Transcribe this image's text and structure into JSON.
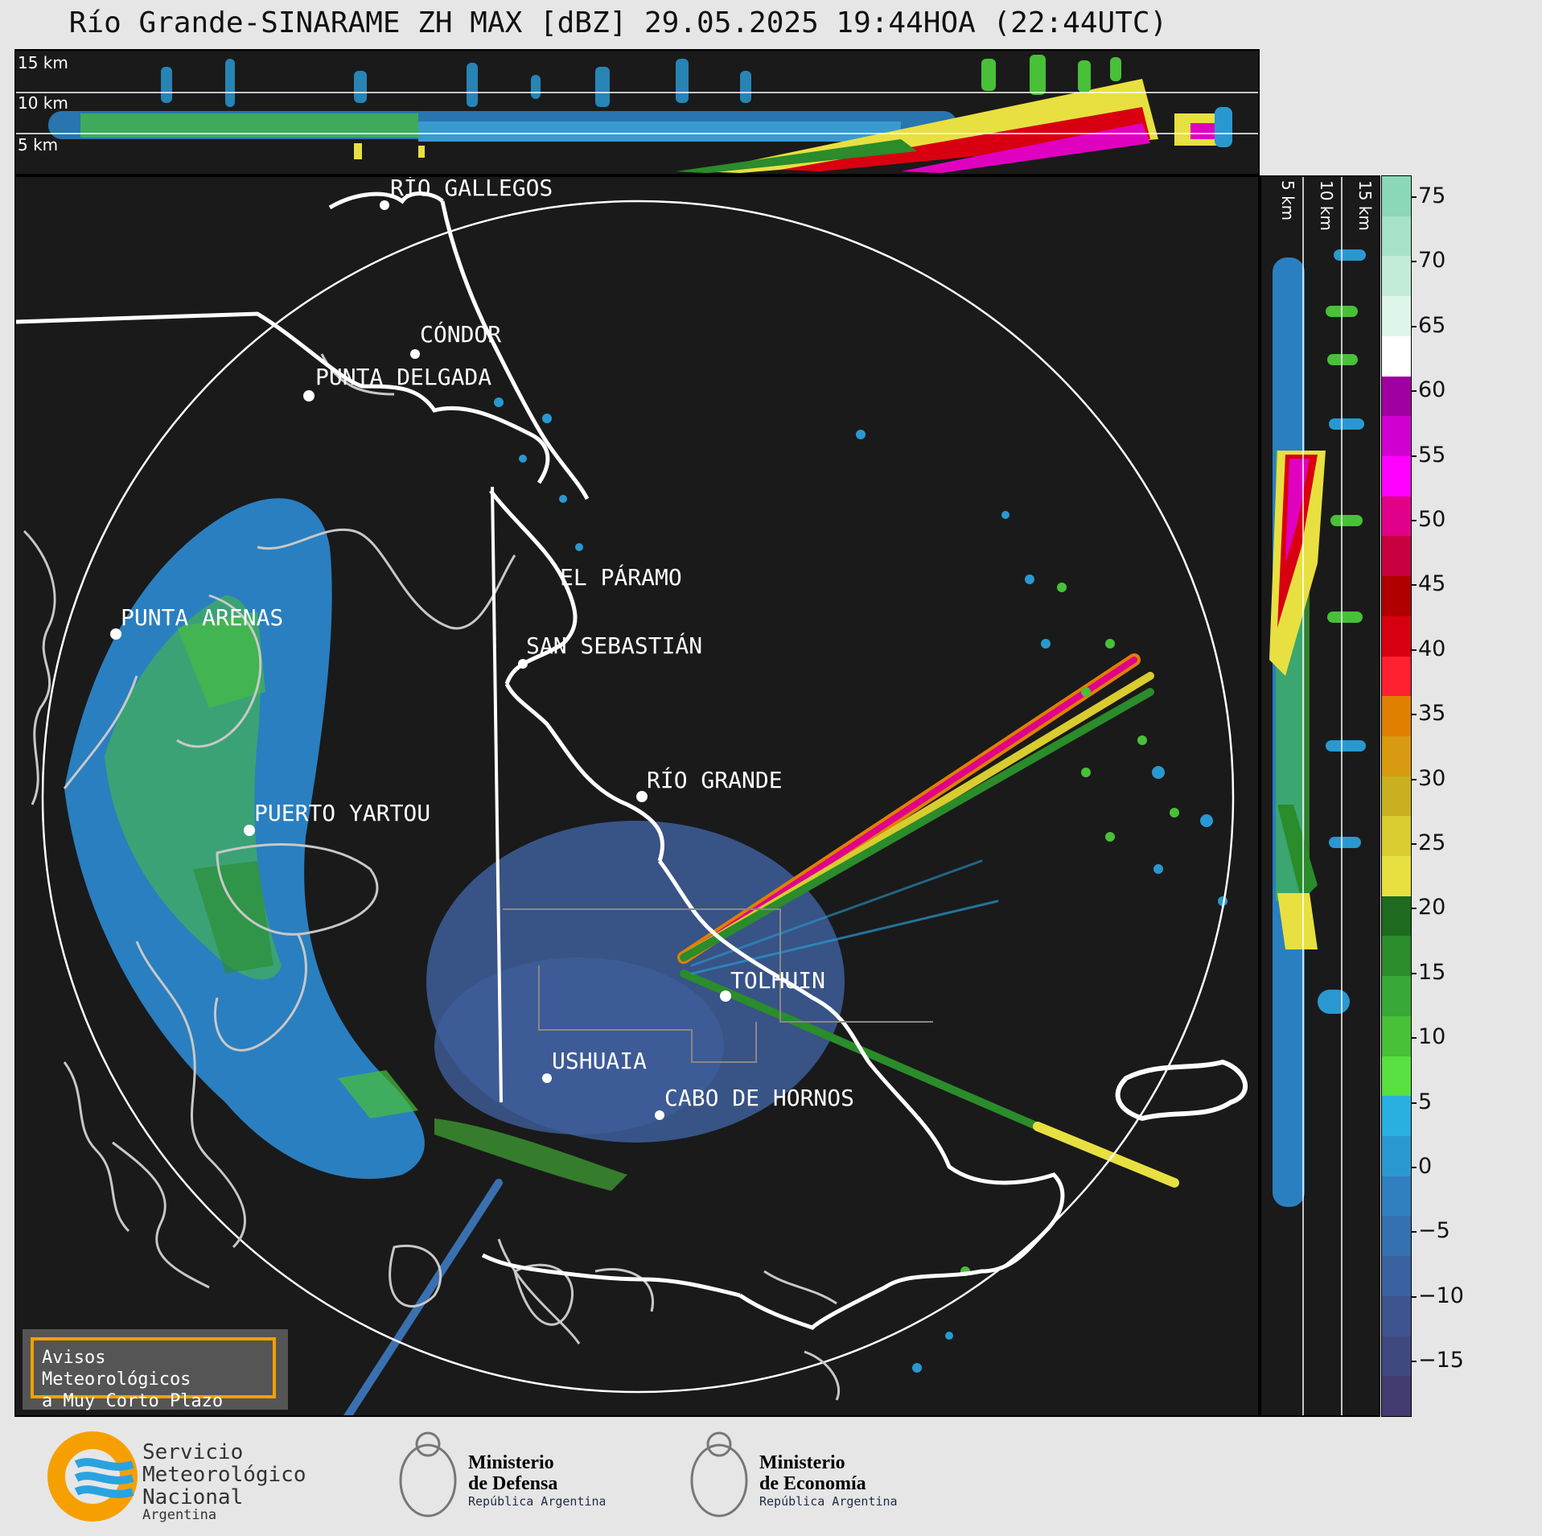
{
  "title": "Río Grande-SINARAME ZH MAX [dBZ] 29.05.2025 19:44HOA (22:44UTC)",
  "altitude_labels": [
    "15 km",
    "10 km",
    "5 km"
  ],
  "map_labels": [
    "RÍO GALLEGOS",
    "CÓNDOR",
    "PUNTA DELGADA",
    "EL PÁRAMO",
    "PUNTA ARENAS",
    "SAN SEBASTIÁN",
    "RÍO GRANDE",
    "PUERTO YARTOU",
    "TOLHUIN",
    "USHUAIA",
    "CABO DE HORNOS"
  ],
  "colorbar": {
    "unit": "dBZ",
    "ticks": [
      "75",
      "70",
      "65",
      "60",
      "55",
      "50",
      "45",
      "40",
      "35",
      "30",
      "25",
      "20",
      "15",
      "10",
      "5",
      "0",
      "−5",
      "−10",
      "−15"
    ],
    "colors": [
      "#8ad8b8",
      "#a6e2c8",
      "#c2ecd8",
      "#def6ea",
      "#ffffff",
      "#a000a0",
      "#d000d0",
      "#ff00ff",
      "#e0008a",
      "#c80040",
      "#b00000",
      "#d80010",
      "#ff2030",
      "#e08000",
      "#d89a10",
      "#c8b020",
      "#d8cc30",
      "#e8e040",
      "#1e6a1e",
      "#2a8c2a",
      "#38a838",
      "#48c038",
      "#58e040",
      "#28b0e0",
      "#2a98d0",
      "#3080c0",
      "#3570b0",
      "#3a62a0",
      "#3e5490",
      "#404880",
      "#423c70"
    ]
  },
  "alert": {
    "line1": "Avisos Meteorológicos",
    "line2": "a Muy Corto Plazo"
  },
  "logos": {
    "smn": {
      "line1": "Servicio",
      "line2": "Meteorológico",
      "line3": "Nacional",
      "line4": "Argentina"
    },
    "defensa": {
      "line1": "Ministerio",
      "line2": "de Defensa",
      "line3": "República Argentina"
    },
    "economia": {
      "line1": "Ministerio",
      "line2": "de Economía",
      "line3": "República Argentina"
    }
  }
}
